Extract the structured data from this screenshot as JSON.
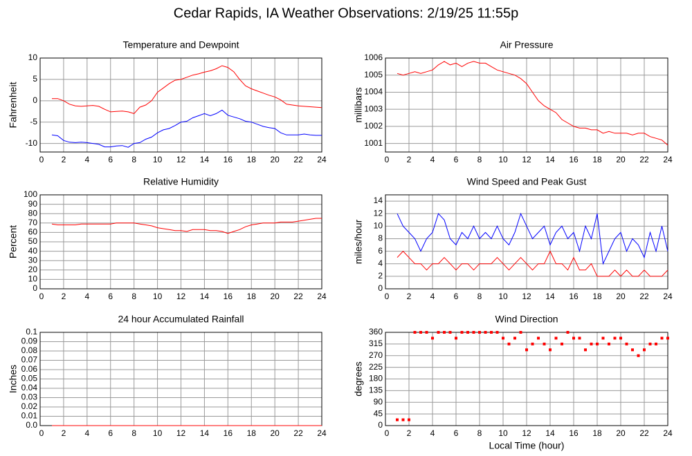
{
  "page_title": "Cedar Rapids, IA Weather Observations: 2/19/25 11:55p",
  "chart_data": [
    {
      "type": "line",
      "title": "Temperature and Dewpoint",
      "ylabel": "Fahrenheit",
      "x": [
        1,
        1.5,
        2,
        2.5,
        3,
        3.5,
        4,
        4.5,
        5,
        5.5,
        6,
        6.5,
        7,
        7.5,
        8,
        8.5,
        9,
        9.5,
        10,
        10.5,
        11,
        11.5,
        12,
        12.5,
        13,
        13.5,
        14,
        14.5,
        15,
        15.5,
        16,
        16.5,
        17,
        17.5,
        18,
        18.5,
        19,
        19.5,
        20,
        20.5,
        21,
        21.5,
        22,
        22.5,
        23,
        23.5,
        24
      ],
      "series": [
        {
          "color": "#ff0000",
          "values": [
            0.5,
            0.5,
            0,
            -0.8,
            -1.2,
            -1.3,
            -1.2,
            -1.1,
            -1.3,
            -2,
            -2.6,
            -2.5,
            -2.4,
            -2.6,
            -3,
            -1.5,
            -1,
            0,
            2,
            3,
            4,
            4.8,
            5,
            5.5,
            6,
            6.3,
            6.7,
            7,
            7.5,
            8.2,
            7.8,
            6.8,
            5,
            3.5,
            2.8,
            2.3,
            1.8,
            1.3,
            0.9,
            0.2,
            -0.8,
            -1,
            -1.2,
            -1.3,
            -1.4,
            -1.5,
            -1.6
          ]
        },
        {
          "color": "#0000ff",
          "values": [
            -8,
            -8.2,
            -9.3,
            -9.7,
            -9.8,
            -9.7,
            -9.8,
            -10,
            -10.2,
            -10.8,
            -10.8,
            -10.6,
            -10.5,
            -10.9,
            -10,
            -9.8,
            -9,
            -8.5,
            -7.5,
            -6.8,
            -6.5,
            -5.8,
            -5,
            -4.8,
            -4,
            -3.5,
            -3,
            -3.5,
            -3,
            -2.2,
            -3.4,
            -3.8,
            -4.2,
            -4.8,
            -5,
            -5.5,
            -6,
            -6.3,
            -6.5,
            -7.5,
            -8,
            -8,
            -8,
            -7.8,
            -8,
            -8.1,
            -8.1
          ]
        }
      ],
      "xlim": [
        0,
        24
      ],
      "xticks": [
        0,
        2,
        4,
        6,
        8,
        10,
        12,
        14,
        16,
        18,
        20,
        22,
        24
      ],
      "ylim": [
        -12,
        10
      ],
      "yticks": [
        -10,
        -5,
        0,
        5,
        10
      ],
      "grid": true
    },
    {
      "type": "line",
      "title": "Air Pressure",
      "ylabel": "millibars",
      "x": [
        1,
        1.5,
        2,
        2.5,
        3,
        3.5,
        4,
        4.5,
        5,
        5.5,
        6,
        6.5,
        7,
        7.5,
        8,
        8.5,
        9,
        9.5,
        10,
        10.5,
        11,
        11.5,
        12,
        12.5,
        13,
        13.5,
        14,
        14.5,
        15,
        15.5,
        16,
        16.5,
        17,
        17.5,
        18,
        18.5,
        19,
        19.5,
        20,
        20.5,
        21,
        21.5,
        22,
        22.5,
        23,
        23.5,
        24
      ],
      "series": [
        {
          "color": "#ff0000",
          "values": [
            1005.1,
            1005.0,
            1005.1,
            1005.2,
            1005.1,
            1005.2,
            1005.3,
            1005.6,
            1005.8,
            1005.6,
            1005.7,
            1005.5,
            1005.7,
            1005.8,
            1005.7,
            1005.7,
            1005.5,
            1005.3,
            1005.2,
            1005.1,
            1005.0,
            1004.8,
            1004.5,
            1004.0,
            1003.5,
            1003.2,
            1003.0,
            1002.8,
            1002.4,
            1002.2,
            1002.0,
            1001.9,
            1001.9,
            1001.8,
            1001.8,
            1001.6,
            1001.7,
            1001.6,
            1001.6,
            1001.6,
            1001.5,
            1001.6,
            1001.6,
            1001.4,
            1001.3,
            1001.2,
            1000.9
          ]
        }
      ],
      "xlim": [
        0,
        24
      ],
      "xticks": [
        0,
        2,
        4,
        6,
        8,
        10,
        12,
        14,
        16,
        18,
        20,
        22,
        24
      ],
      "ylim": [
        1000.5,
        1006
      ],
      "yticks": [
        1001,
        1002,
        1003,
        1004,
        1005,
        1006
      ],
      "grid": true
    },
    {
      "type": "line",
      "title": "Relative Humidity",
      "ylabel": "Percent",
      "x": [
        1,
        1.5,
        2,
        2.5,
        3,
        3.5,
        4,
        4.5,
        5,
        5.5,
        6,
        6.5,
        7,
        7.5,
        8,
        8.5,
        9,
        9.5,
        10,
        10.5,
        11,
        11.5,
        12,
        12.5,
        13,
        13.5,
        14,
        14.5,
        15,
        15.5,
        16,
        16.5,
        17,
        17.5,
        18,
        18.5,
        19,
        19.5,
        20,
        20.5,
        21,
        21.5,
        22,
        22.5,
        23,
        23.5,
        24
      ],
      "series": [
        {
          "color": "#ff0000",
          "values": [
            69,
            68,
            68,
            68,
            68,
            69,
            69,
            69,
            69,
            69,
            69,
            70,
            70,
            70,
            70,
            69,
            68,
            67,
            65,
            64,
            63,
            62,
            62,
            61,
            63,
            63,
            63,
            62,
            62,
            61,
            59,
            61,
            63,
            66,
            68,
            69,
            70,
            70,
            70,
            71,
            71,
            71,
            72,
            73,
            74,
            75,
            75
          ]
        }
      ],
      "xlim": [
        0,
        24
      ],
      "xticks": [
        0,
        2,
        4,
        6,
        8,
        10,
        12,
        14,
        16,
        18,
        20,
        22,
        24
      ],
      "ylim": [
        0,
        100
      ],
      "yticks": [
        0,
        10,
        20,
        30,
        40,
        50,
        60,
        70,
        80,
        90,
        100
      ],
      "grid": true
    },
    {
      "type": "line",
      "title": "Wind Speed and Peak Gust",
      "ylabel": "miles/hour",
      "x": [
        1,
        1.5,
        2,
        2.5,
        3,
        3.5,
        4,
        4.5,
        5,
        5.5,
        6,
        6.5,
        7,
        7.5,
        8,
        8.5,
        9,
        9.5,
        10,
        10.5,
        11,
        11.5,
        12,
        12.5,
        13,
        13.5,
        14,
        14.5,
        15,
        15.5,
        16,
        16.5,
        17,
        17.5,
        18,
        18.5,
        19,
        19.5,
        20,
        20.5,
        21,
        21.5,
        22,
        22.5,
        23,
        23.5,
        24
      ],
      "series": [
        {
          "color": "#0000ff",
          "values": [
            12,
            10,
            9,
            8,
            6,
            8,
            9,
            12,
            11,
            8,
            7,
            9,
            8,
            10,
            8,
            9,
            8,
            10,
            8,
            7,
            9,
            12,
            10,
            8,
            9,
            10,
            7,
            9,
            10,
            8,
            9,
            6,
            10,
            8,
            12,
            4,
            6,
            8,
            9,
            6,
            8,
            7,
            5,
            9,
            6,
            10,
            6
          ]
        },
        {
          "color": "#ff0000",
          "values": [
            5,
            6,
            5,
            4,
            4,
            3,
            4,
            4,
            5,
            4,
            3,
            4,
            4,
            3,
            4,
            4,
            4,
            5,
            4,
            3,
            4,
            5,
            4,
            3,
            4,
            4,
            6,
            4,
            4,
            3,
            5,
            3,
            3,
            4,
            2,
            2,
            2,
            3,
            2,
            3,
            2,
            2,
            3,
            2,
            2,
            2,
            3
          ]
        }
      ],
      "xlim": [
        0,
        24
      ],
      "xticks": [
        0,
        2,
        4,
        6,
        8,
        10,
        12,
        14,
        16,
        18,
        20,
        22,
        24
      ],
      "ylim": [
        0,
        15
      ],
      "yticks": [
        0,
        2,
        4,
        6,
        8,
        10,
        12,
        14
      ],
      "grid": true
    },
    {
      "type": "line",
      "title": "24 hour Accumulated Rainfall",
      "ylabel": "Inches",
      "x": [
        1,
        24
      ],
      "series": [
        {
          "color": "#ff0000",
          "values": [
            0,
            0
          ]
        }
      ],
      "xlim": [
        0,
        24
      ],
      "xticks": [
        0,
        2,
        4,
        6,
        8,
        10,
        12,
        14,
        16,
        18,
        20,
        22,
        24
      ],
      "ylim": [
        0,
        0.1
      ],
      "yticks": [
        {
          "value": 0,
          "label": "0.0"
        },
        0.01,
        0.02,
        0.03,
        0.04,
        0.05,
        0.06,
        0.07,
        0.08,
        0.09,
        0.1
      ],
      "grid": true
    },
    {
      "type": "scatter",
      "title": "Wind Direction",
      "ylabel": "degrees",
      "xlabel": "Local Time (hour)",
      "x": [
        1,
        1.5,
        2,
        2.5,
        3,
        3.5,
        4,
        4.5,
        5,
        5.5,
        6,
        6.5,
        7,
        7.5,
        8,
        8.5,
        9,
        9.5,
        10,
        10.5,
        11,
        11.5,
        12,
        12.5,
        13,
        13.5,
        14,
        14.5,
        15,
        15.5,
        16,
        16.5,
        17,
        17.5,
        18,
        18.5,
        19,
        19.5,
        20,
        20.5,
        21,
        21.5,
        22,
        22.5,
        23,
        23.5,
        24
      ],
      "series": [
        {
          "color": "#ff0000",
          "values": [
            22.5,
            22.5,
            22.5,
            360,
            360,
            360,
            337.5,
            360,
            360,
            360,
            337.5,
            360,
            360,
            360,
            360,
            360,
            360,
            360,
            337.5,
            315,
            337.5,
            360,
            292.5,
            315,
            337.5,
            315,
            292.5,
            337.5,
            315,
            360,
            337.5,
            337.5,
            292.5,
            315,
            315,
            337.5,
            315,
            337.5,
            337.5,
            315,
            292.5,
            270,
            292.5,
            315,
            315,
            337.5,
            337.5
          ]
        }
      ],
      "xlim": [
        0,
        24
      ],
      "xticks": [
        0,
        2,
        4,
        6,
        8,
        10,
        12,
        14,
        16,
        18,
        20,
        22,
        24
      ],
      "ylim": [
        0,
        360
      ],
      "yticks": [
        0,
        45,
        90,
        135,
        180,
        225,
        270,
        315,
        360
      ],
      "grid": true
    }
  ]
}
